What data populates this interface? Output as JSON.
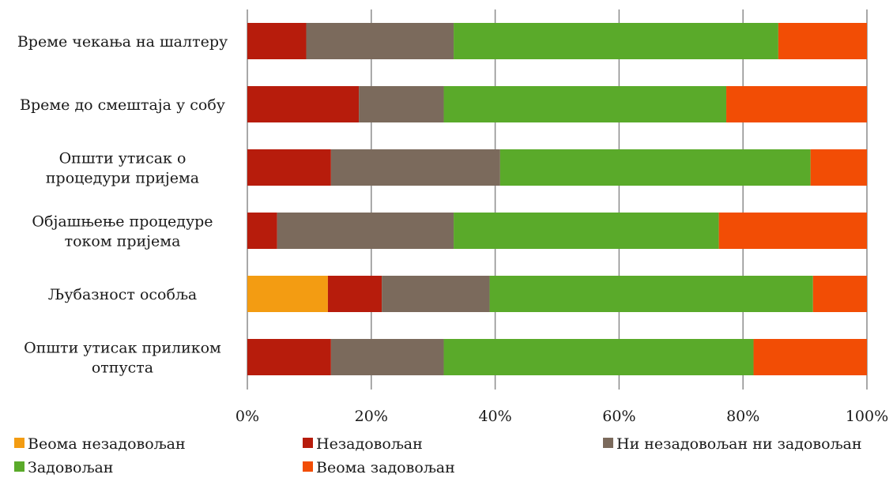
{
  "chart_data": {
    "type": "bar",
    "orientation": "horizontal",
    "stacked": "percent",
    "categories": [
      "Време чекања на шалтеру",
      "Време до смештаја у собу",
      "Општи утисак о процедури пријема",
      "Објашњење процедуре током пријема",
      "Љубазност особља",
      "Општи утисак приликом отпуста"
    ],
    "category_lines": [
      [
        "Време чекања на шалтеру"
      ],
      [
        "Време до смештаја у собу"
      ],
      [
        "Општи утисак о",
        "процедури пријема"
      ],
      [
        "Објашњење процедуре",
        "током пријема"
      ],
      [
        "Љубазност особља"
      ],
      [
        "Општи утисак приликом",
        "отпуста"
      ]
    ],
    "series": [
      {
        "name": "Веома незадовољан",
        "color": "#f39c12",
        "values": [
          0,
          0,
          0,
          0,
          13,
          0
        ]
      },
      {
        "name": "Незадовољан",
        "color": "#b71c0c",
        "values": [
          9.5,
          18,
          13.5,
          4.8,
          8.7,
          13.5
        ]
      },
      {
        "name": "Ни незадовољан ни задовољан",
        "color": "#7b6a5c",
        "values": [
          23.8,
          13.7,
          27.3,
          28.5,
          17.4,
          18.2
        ]
      },
      {
        "name": "Задовољан",
        "color": "#5aaa2a",
        "values": [
          52.4,
          45.6,
          50.1,
          42.8,
          52.2,
          50
        ]
      },
      {
        "name": "Веома задовољан",
        "color": "#f24d05",
        "values": [
          14.3,
          22.7,
          9.1,
          23.9,
          8.7,
          18.3
        ]
      }
    ],
    "xlim": [
      0,
      100
    ],
    "ticks": [
      0,
      20,
      40,
      60,
      80,
      100
    ],
    "tick_labels": [
      "0%",
      "20%",
      "40%",
      "60%",
      "80%",
      "100%"
    ],
    "grid": true,
    "legend_position": "bottom"
  }
}
